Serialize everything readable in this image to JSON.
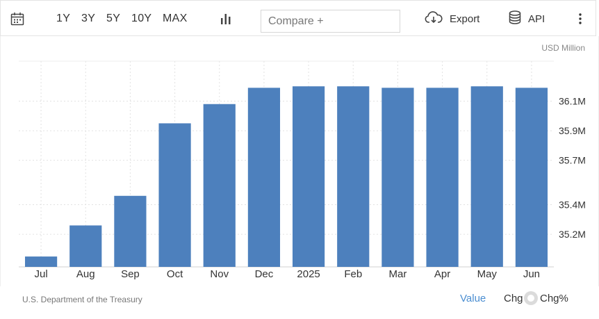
{
  "toolbar": {
    "ranges": [
      "1Y",
      "3Y",
      "5Y",
      "10Y",
      "MAX"
    ],
    "compare_placeholder": "Compare +",
    "export_label": "Export",
    "api_label": "API",
    "icons": {
      "calendar": "calendar-icon",
      "chart_type": "bar-chart-icon",
      "export": "cloud-download-icon",
      "api": "database-icon",
      "more": "more-vertical-icon"
    }
  },
  "unit_label": "USD Million",
  "chart_data": {
    "type": "bar",
    "categories": [
      "Jul",
      "Aug",
      "Sep",
      "Oct",
      "Nov",
      "Dec",
      "2025",
      "Feb",
      "Mar",
      "Apr",
      "May",
      "Jun"
    ],
    "values": [
      35.05,
      35.26,
      35.46,
      35.95,
      36.08,
      36.19,
      36.2,
      36.2,
      36.19,
      36.19,
      36.2,
      36.19
    ],
    "ylim": [
      34.98,
      36.37
    ],
    "yticks": [
      35.2,
      35.4,
      35.7,
      35.9,
      36.1
    ],
    "ytick_labels": [
      "35.2M",
      "35.4M",
      "35.7M",
      "35.9M",
      "36.1M"
    ],
    "grid": true,
    "bar_color": "#4d80bd"
  },
  "footer": {
    "source": "U.S. Department of the Treasury",
    "tabs": [
      "Value",
      "Chg",
      "Chg%"
    ],
    "active_tab": "Value",
    "accent_color": "#4b8ed1"
  }
}
